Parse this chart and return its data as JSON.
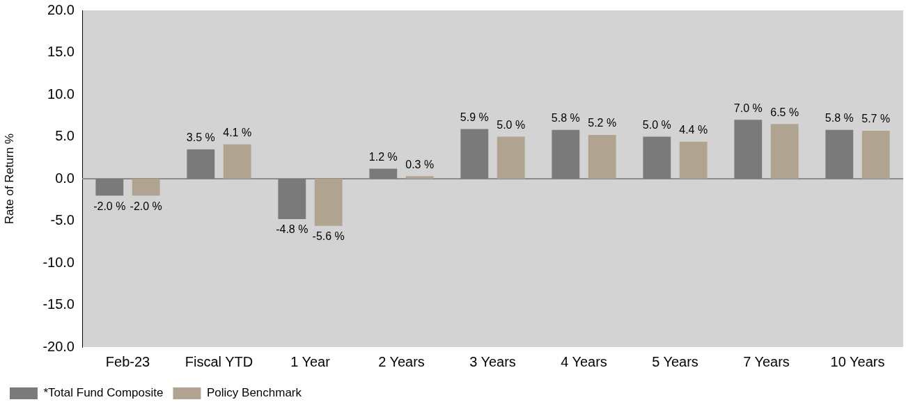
{
  "chart_data": {
    "type": "bar",
    "ylabel": "Rate of Return %",
    "categories": [
      "Feb-23",
      "Fiscal YTD",
      "1 Year",
      "2 Years",
      "3 Years",
      "4 Years",
      "5 Years",
      "7 Years",
      "10 Years"
    ],
    "series": [
      {
        "name": "*Total Fund Composite",
        "color": "#7a7a7a",
        "values": [
          -2.0,
          3.5,
          -4.8,
          1.2,
          5.9,
          5.8,
          5.0,
          7.0,
          5.8
        ],
        "value_labels": [
          "-2.0 %",
          "3.5 %",
          "-4.8 %",
          "1.2 %",
          "5.9 %",
          "5.8 %",
          "5.0 %",
          "7.0 %",
          "5.8 %"
        ]
      },
      {
        "name": "Policy Benchmark",
        "color": "#b0a490",
        "values": [
          -2.0,
          4.1,
          -5.6,
          0.3,
          5.0,
          5.2,
          4.4,
          6.5,
          5.7
        ],
        "value_labels": [
          "-2.0 %",
          "4.1 %",
          "-5.6 %",
          "0.3 %",
          "5.0 %",
          "5.2 %",
          "4.4 %",
          "6.5 %",
          "5.7 %"
        ]
      }
    ],
    "ylim": [
      -20,
      20
    ],
    "yticks": [
      {
        "value": -20,
        "label": "-20.0"
      },
      {
        "value": -15,
        "label": "-15.0"
      },
      {
        "value": -10,
        "label": "-10.0"
      },
      {
        "value": -5,
        "label": "-5.0"
      },
      {
        "value": 0,
        "label": "0.0"
      },
      {
        "value": 5,
        "label": "5.0"
      },
      {
        "value": 10,
        "label": "10.0"
      },
      {
        "value": 15,
        "label": "15.0"
      },
      {
        "value": 20,
        "label": "20.0"
      }
    ],
    "ref_lines": [
      {
        "axis": "y",
        "value": 0,
        "color": "#8c8c8c"
      }
    ],
    "grid": false,
    "legend": "bottom left"
  }
}
